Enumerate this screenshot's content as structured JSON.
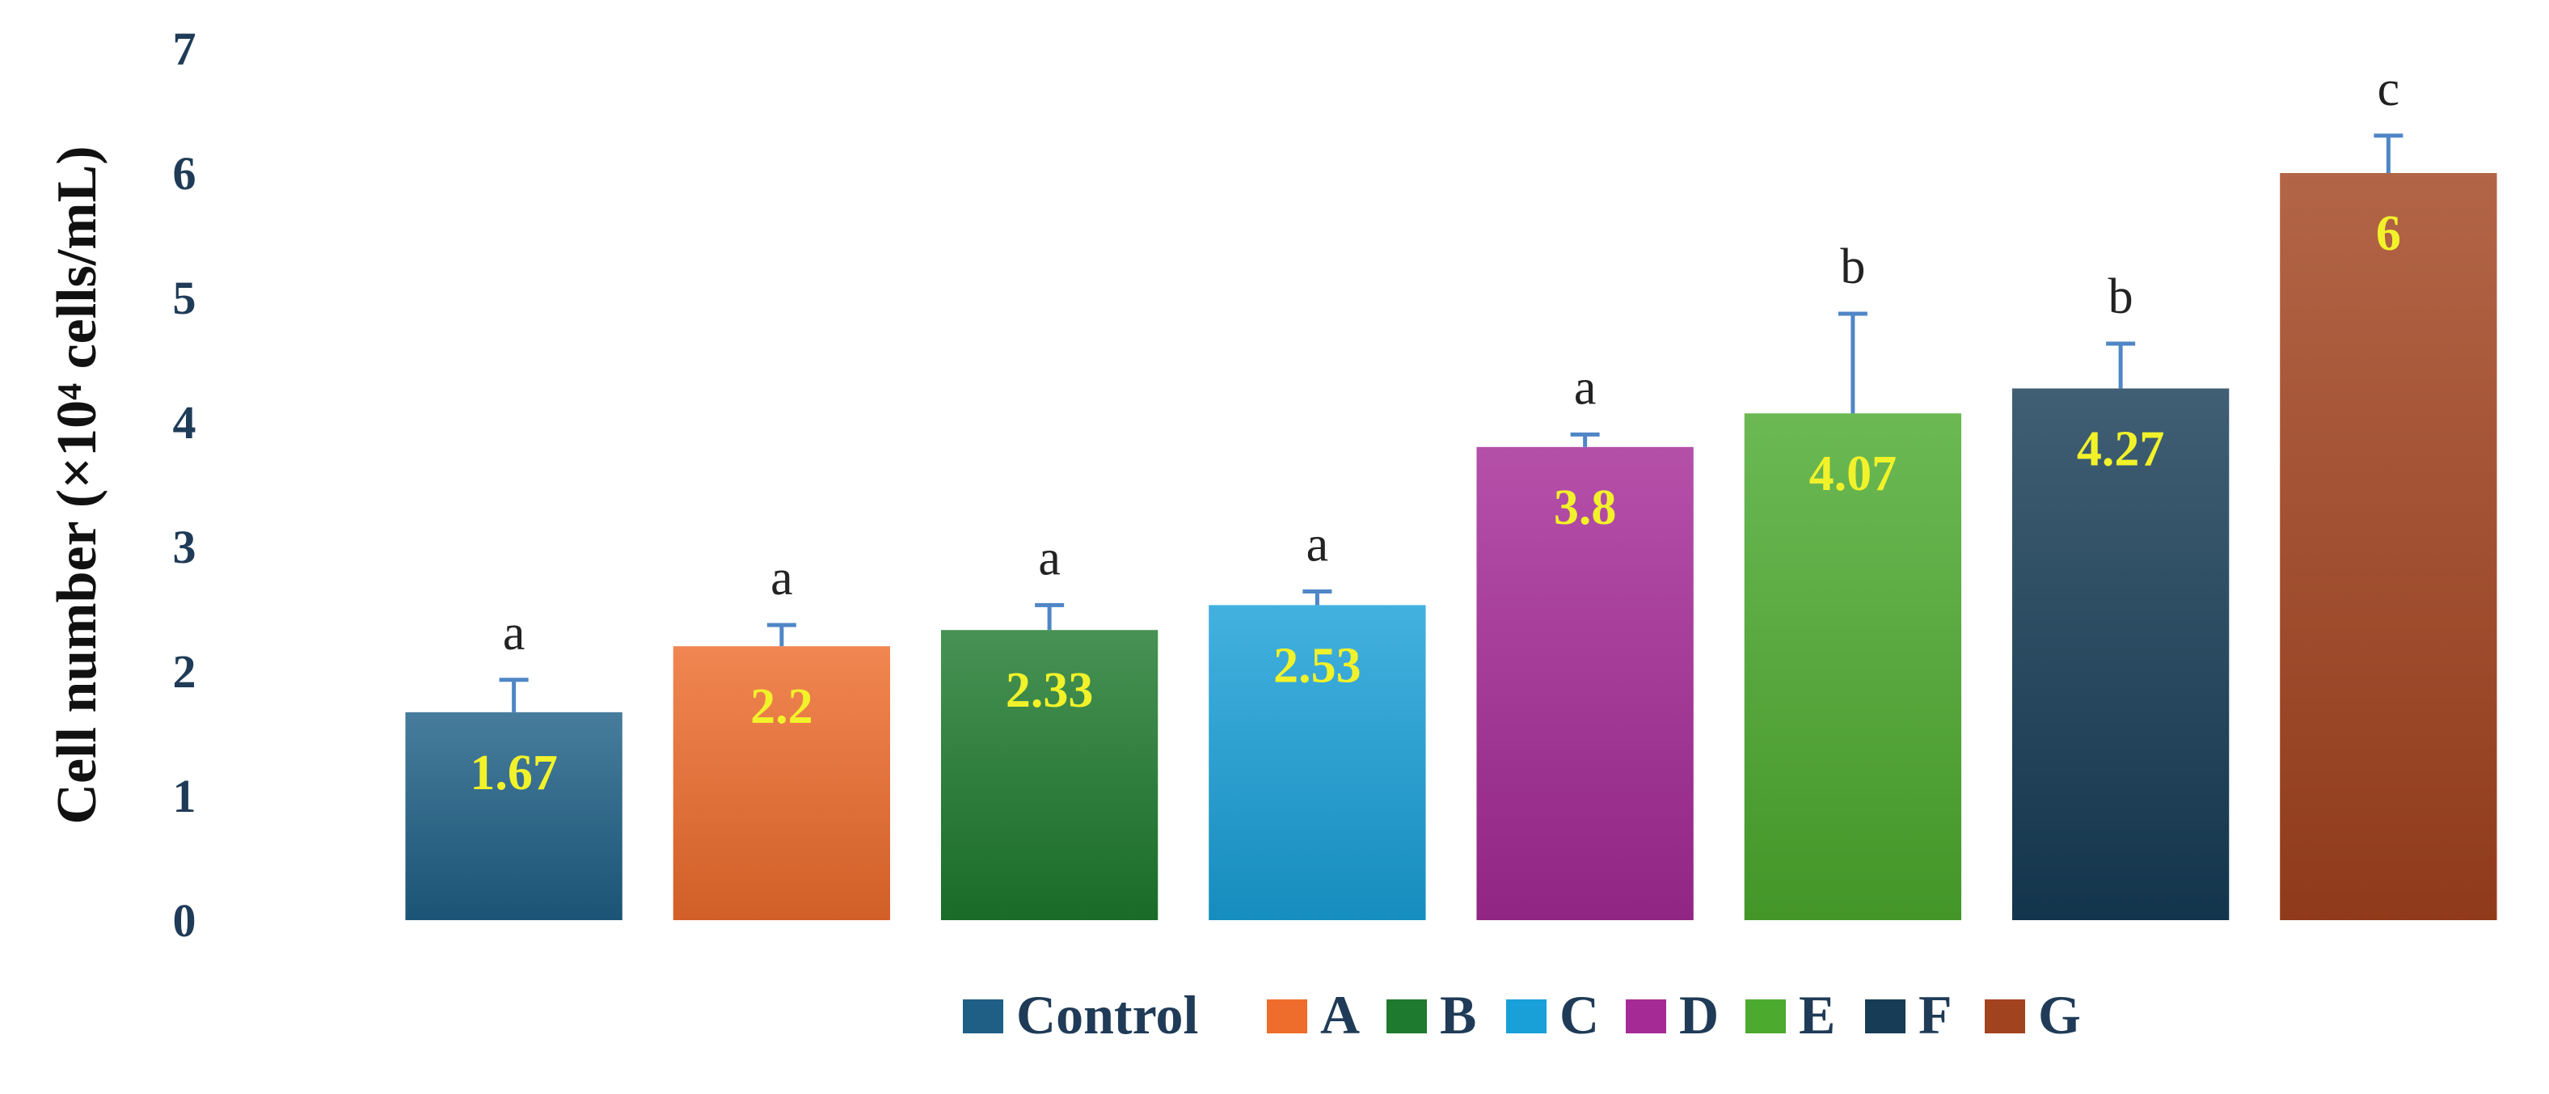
{
  "chart_data": {
    "type": "bar",
    "ylabel": "Cell number (×10⁴ cells/mL)",
    "ylim": [
      0,
      7
    ],
    "yticks": [
      0,
      1,
      2,
      3,
      4,
      5,
      6,
      7
    ],
    "grid": false,
    "legend_position": "bottom",
    "categories": [
      "Control",
      "A",
      "B",
      "C",
      "D",
      "E",
      "F",
      "G"
    ],
    "values": [
      1.67,
      2.2,
      2.33,
      2.53,
      3.8,
      4.07,
      4.27,
      6
    ],
    "value_labels": [
      "1.67",
      "2.2",
      "2.33",
      "2.53",
      "3.8",
      "4.07",
      "4.27",
      "6"
    ],
    "error_upper": [
      1.93,
      2.37,
      2.53,
      2.64,
      3.9,
      4.87,
      4.63,
      6.3
    ],
    "significance": [
      "a",
      "a",
      "a",
      "a",
      "a",
      "b",
      "b",
      "c"
    ],
    "colors": [
      "#1f5f86",
      "#ee6c2c",
      "#1e7a2e",
      "#19a0d8",
      "#a52a96",
      "#4caa2e",
      "#163c56",
      "#a2431f"
    ],
    "value_label_color": "#f2f22a",
    "error_bar_color": "#4f86c6"
  }
}
